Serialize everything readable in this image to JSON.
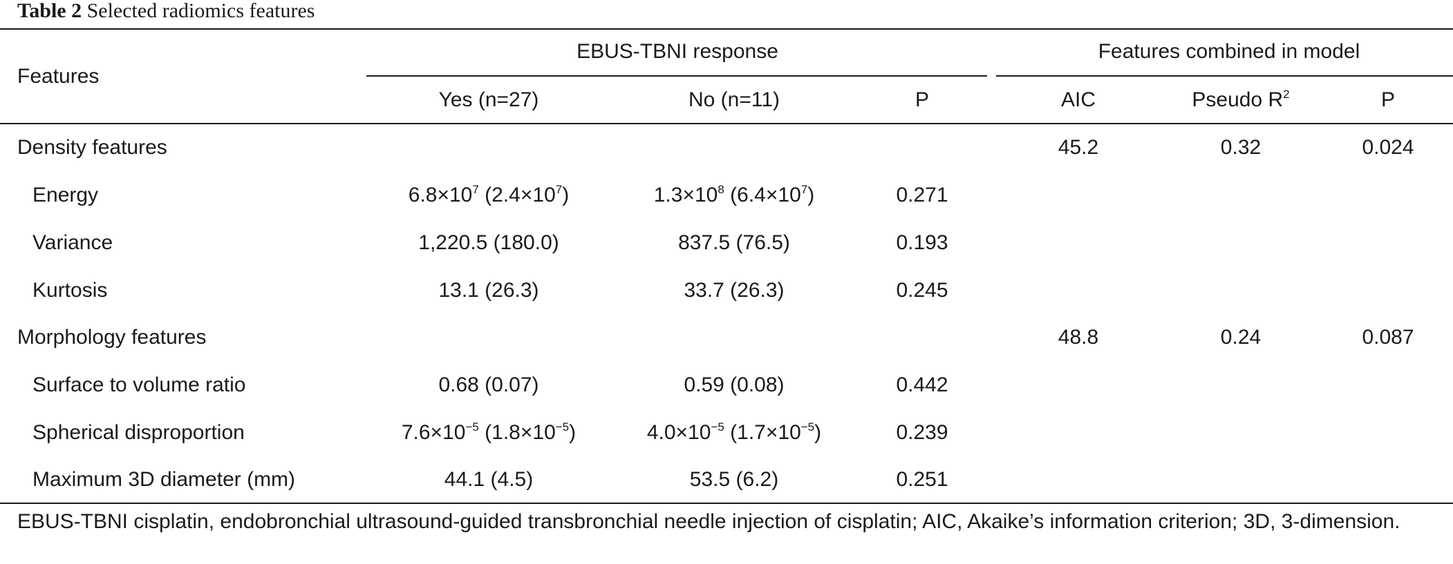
{
  "caption": {
    "label": "Table 2",
    "text": "Selected radiomics features"
  },
  "header": {
    "features_label": "Features",
    "group1": "EBUS-TBNI response",
    "group2": "Features combined in model",
    "cols": {
      "yes": "Yes (n=27)",
      "no": "No (n=11)",
      "p1": "P",
      "aic": "AIC",
      "pseudo_base": "Pseudo R",
      "pseudo_sup": "2",
      "p2": "P"
    }
  },
  "rows": [
    {
      "name": "Density features",
      "aic": "45.2",
      "pseudo": "0.32",
      "p2": "0.024"
    },
    {
      "name": "Energy",
      "yes": {
        "a": "6.8×10",
        "a_sup": "7",
        "b": " (2.4×10",
        "b_sup": "7",
        "c": ")"
      },
      "no": {
        "a": "1.3×10",
        "a_sup": "8",
        "b": " (6.4×10",
        "b_sup": "7",
        "c": ")"
      },
      "p1": "0.271"
    },
    {
      "name": "Variance",
      "yes": "1,220.5 (180.0)",
      "no": "837.5 (76.5)",
      "p1": "0.193"
    },
    {
      "name": "Kurtosis",
      "yes": "13.1 (26.3)",
      "no": "33.7 (26.3)",
      "p1": "0.245"
    },
    {
      "name": "Morphology features",
      "aic": "48.8",
      "pseudo": "0.24",
      "p2": "0.087"
    },
    {
      "name": "Surface to volume ratio",
      "yes": "0.68 (0.07)",
      "no": "0.59 (0.08)",
      "p1": "0.442"
    },
    {
      "name": "Spherical disproportion",
      "yes": {
        "a": "7.6×10",
        "a_sup": "−5",
        "b": " (1.8×10",
        "b_sup": "−5",
        "c": ")"
      },
      "no": {
        "a": "4.0×10",
        "a_sup": "−5",
        "b": " (1.7×10",
        "b_sup": "−5",
        "c": ")"
      },
      "p1": "0.239"
    },
    {
      "name": "Maximum 3D diameter (mm)",
      "yes": "44.1 (4.5)",
      "no": "53.5 (6.2)",
      "p1": "0.251"
    }
  ],
  "footnote": "EBUS-TBNI cisplatin, endobronchial ultrasound-guided transbronchial needle injection of cisplatin; AIC, Akaike’s information criterion; 3D, 3-dimension."
}
